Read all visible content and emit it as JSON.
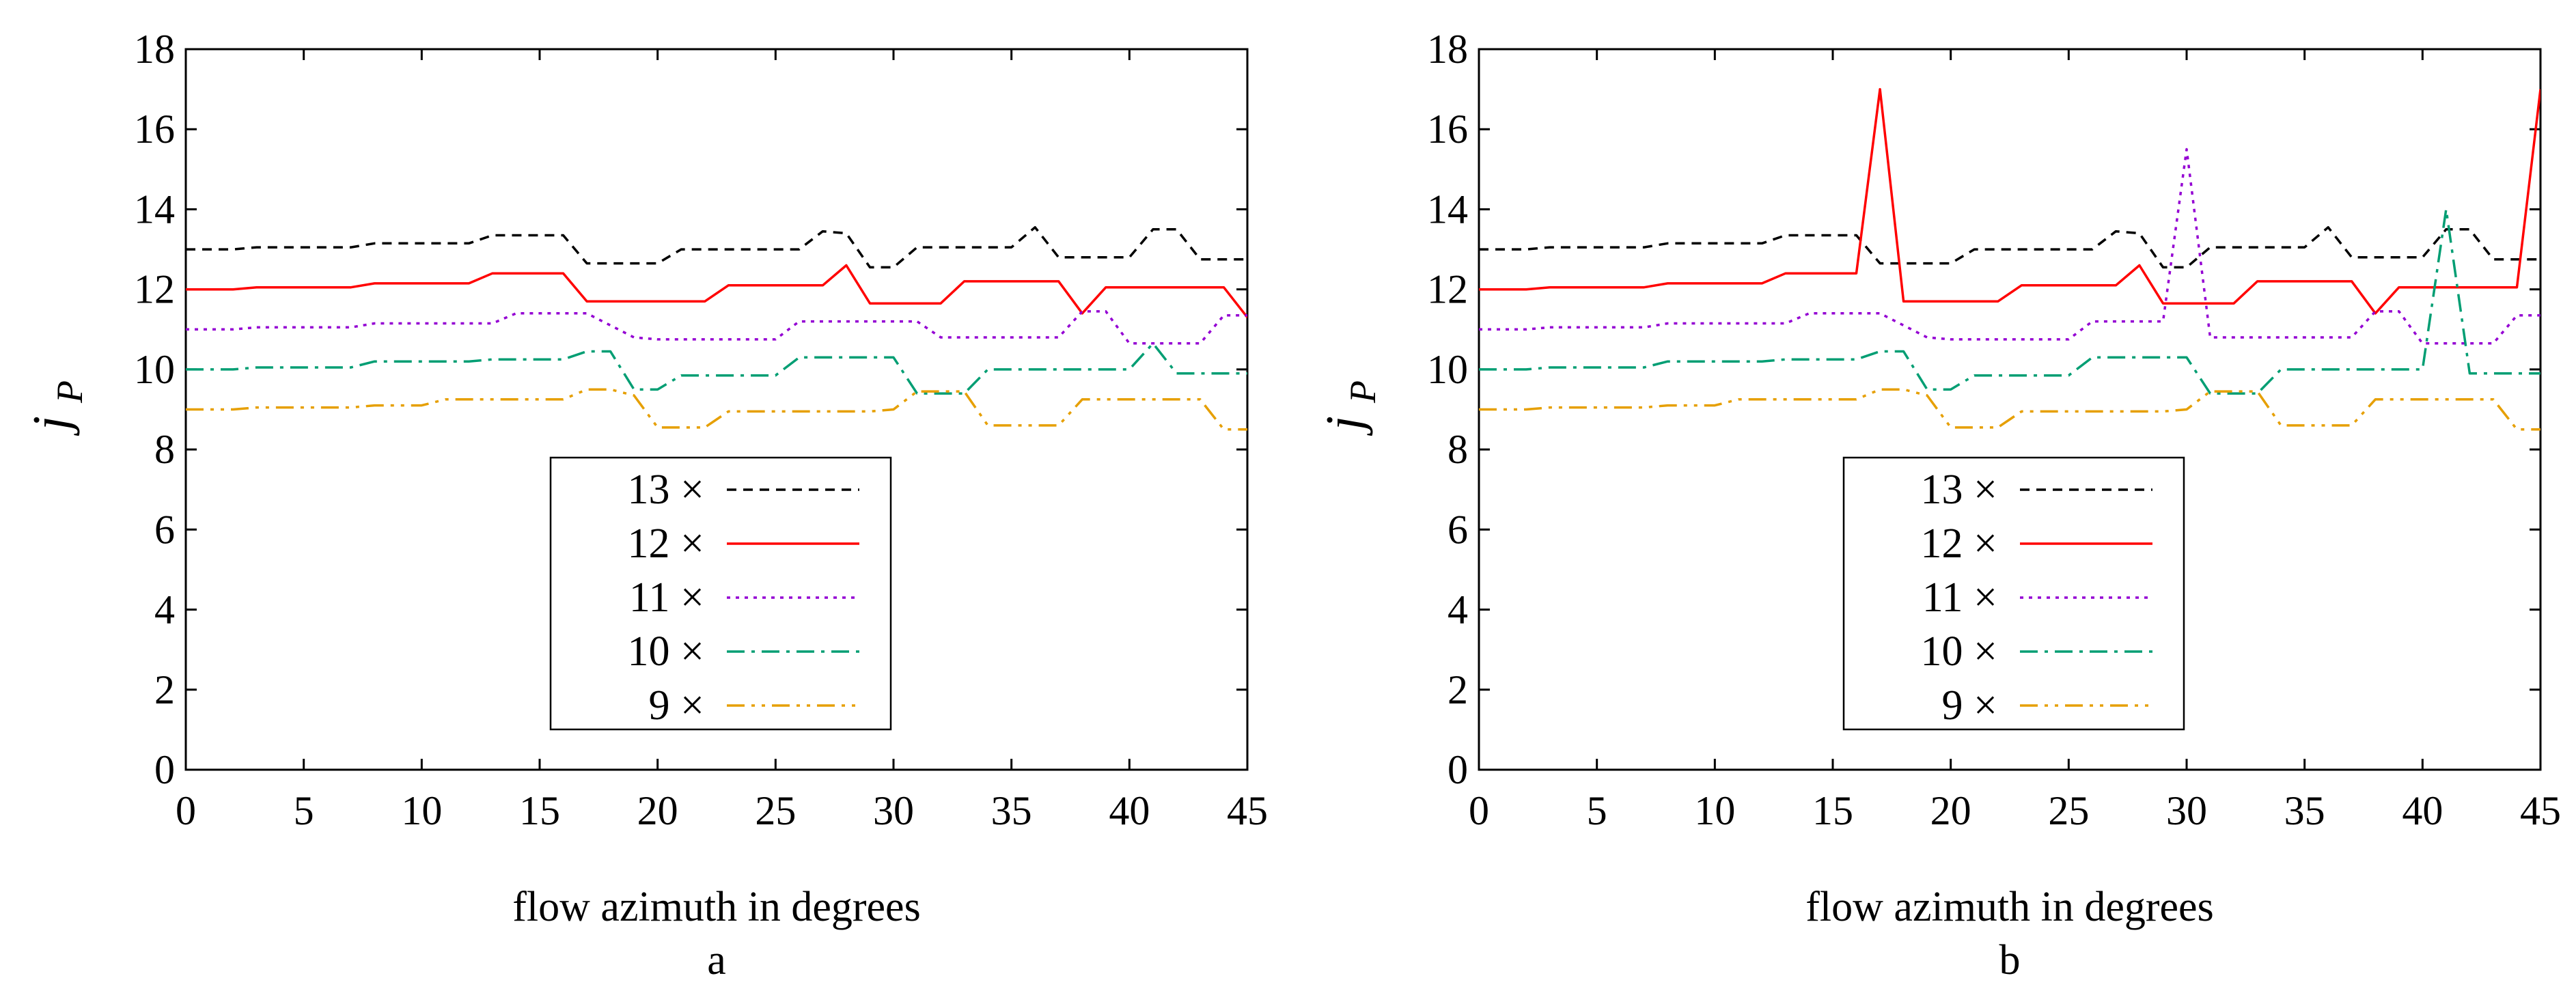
{
  "colors": {
    "s13": "#000000",
    "s12": "#ff0000",
    "s11": "#9400d3",
    "s10": "#009e73",
    "s9": "#e69f00"
  },
  "chart_data": [
    {
      "type": "line",
      "panel_label": "a",
      "xlabel": "flow azimuth in degrees",
      "ylabel_main": "j",
      "ylabel_sub": "P",
      "xlim": [
        0,
        45
      ],
      "ylim": [
        0,
        18
      ],
      "x_ticks": [
        0,
        5,
        10,
        15,
        20,
        25,
        30,
        35,
        40,
        45
      ],
      "y_ticks": [
        0,
        2,
        4,
        6,
        8,
        10,
        12,
        14,
        16,
        18
      ],
      "legend_position": "bottom-center",
      "series": [
        {
          "name": "13 ×",
          "dash": "dashed",
          "color": "#000000",
          "x": [
            0,
            2,
            3,
            7,
            8,
            12,
            13,
            16,
            17,
            20,
            21,
            26,
            27,
            28,
            29,
            30,
            31,
            35,
            36,
            37,
            40,
            41,
            42,
            43,
            44,
            45
          ],
          "y": [
            13.0,
            13.0,
            13.05,
            13.05,
            13.15,
            13.15,
            13.35,
            13.35,
            12.65,
            12.65,
            13.0,
            13.0,
            13.45,
            13.4,
            12.55,
            12.55,
            13.05,
            13.05,
            13.55,
            12.8,
            12.8,
            13.5,
            13.5,
            12.75,
            12.75,
            12.75
          ]
        },
        {
          "name": "12 ×",
          "dash": "solid",
          "color": "#ff0000",
          "x": [
            0,
            2,
            3,
            7,
            8,
            12,
            13,
            16,
            17,
            22,
            23,
            27,
            28,
            29,
            32,
            33,
            37,
            38,
            39,
            44,
            45
          ],
          "y": [
            12.0,
            12.0,
            12.05,
            12.05,
            12.15,
            12.15,
            12.4,
            12.4,
            11.7,
            11.7,
            12.1,
            12.1,
            12.6,
            11.65,
            11.65,
            12.2,
            12.2,
            11.4,
            12.05,
            12.05,
            11.3
          ]
        },
        {
          "name": "11 ×",
          "dash": "dotted",
          "color": "#9400d3",
          "x": [
            0,
            2,
            3,
            7,
            8,
            13,
            14,
            17,
            19,
            20,
            25,
            26,
            31,
            32,
            37,
            38,
            39,
            40,
            43,
            44,
            45
          ],
          "y": [
            11.0,
            11.0,
            11.05,
            11.05,
            11.15,
            11.15,
            11.4,
            11.4,
            10.8,
            10.75,
            10.75,
            11.2,
            11.2,
            10.8,
            10.8,
            11.45,
            11.45,
            10.65,
            10.65,
            11.35,
            11.35
          ]
        },
        {
          "name": "10 ×",
          "dash": "dashdot",
          "color": "#009e73",
          "x": [
            0,
            2,
            3,
            7,
            8,
            12,
            13,
            16,
            17,
            18,
            19,
            20,
            21,
            25,
            26,
            27,
            30,
            31,
            32,
            33,
            34,
            40,
            41,
            42,
            45
          ],
          "y": [
            10.0,
            10.0,
            10.05,
            10.05,
            10.2,
            10.2,
            10.25,
            10.25,
            10.45,
            10.45,
            9.5,
            9.5,
            9.85,
            9.85,
            10.3,
            10.3,
            10.3,
            9.4,
            9.4,
            9.4,
            10.0,
            10.0,
            10.65,
            9.9,
            9.9
          ]
        },
        {
          "name": "9 ×",
          "dash": "dashdotdot",
          "color": "#e69f00",
          "x": [
            0,
            2,
            3,
            7,
            8,
            10,
            11,
            15,
            16,
            17,
            18,
            19,
            20,
            22,
            23,
            29,
            30,
            31,
            33,
            34,
            36,
            37,
            38,
            43,
            44,
            45
          ],
          "y": [
            9.0,
            9.0,
            9.05,
            9.05,
            9.1,
            9.1,
            9.25,
            9.25,
            9.25,
            9.5,
            9.5,
            9.35,
            8.55,
            8.55,
            8.95,
            8.95,
            9.0,
            9.45,
            9.45,
            8.6,
            8.6,
            8.6,
            9.25,
            9.25,
            8.5,
            8.5
          ]
        }
      ]
    },
    {
      "type": "line",
      "panel_label": "b",
      "xlabel": "flow azimuth in degrees",
      "ylabel_main": "j",
      "ylabel_sub": "P",
      "xlim": [
        0,
        45
      ],
      "ylim": [
        0,
        18
      ],
      "x_ticks": [
        0,
        5,
        10,
        15,
        20,
        25,
        30,
        35,
        40,
        45
      ],
      "y_ticks": [
        0,
        2,
        4,
        6,
        8,
        10,
        12,
        14,
        16,
        18
      ],
      "legend_position": "bottom-center",
      "series": [
        {
          "name": "13 ×",
          "dash": "dashed",
          "color": "#000000",
          "x": [
            0,
            2,
            3,
            7,
            8,
            12,
            13,
            16,
            17,
            20,
            21,
            26,
            27,
            28,
            29,
            30,
            31,
            35,
            36,
            37,
            40,
            41,
            42,
            43,
            44,
            45
          ],
          "y": [
            13.0,
            13.0,
            13.05,
            13.05,
            13.15,
            13.15,
            13.35,
            13.35,
            12.65,
            12.65,
            13.0,
            13.0,
            13.45,
            13.4,
            12.55,
            12.55,
            13.05,
            13.05,
            13.55,
            12.8,
            12.8,
            13.5,
            13.5,
            12.75,
            12.75,
            12.75
          ]
        },
        {
          "name": "12 ×",
          "dash": "solid",
          "color": "#ff0000",
          "x": [
            0,
            2,
            3,
            7,
            8,
            12,
            13,
            16,
            17,
            18,
            22,
            23,
            27,
            28,
            29,
            32,
            33,
            37,
            38,
            39,
            44,
            45
          ],
          "y": [
            12.0,
            12.0,
            12.05,
            12.05,
            12.15,
            12.15,
            12.4,
            12.4,
            17.0,
            11.7,
            11.7,
            12.1,
            12.1,
            12.6,
            11.65,
            11.65,
            12.2,
            12.2,
            11.4,
            12.05,
            12.05,
            17.0
          ]
        },
        {
          "name": "11 ×",
          "dash": "dotted",
          "color": "#9400d3",
          "x": [
            0,
            2,
            3,
            7,
            8,
            13,
            14,
            17,
            19,
            20,
            25,
            26,
            29,
            30,
            31,
            32,
            37,
            38,
            39,
            40,
            43,
            44,
            45
          ],
          "y": [
            11.0,
            11.0,
            11.05,
            11.05,
            11.15,
            11.15,
            11.4,
            11.4,
            10.8,
            10.75,
            10.75,
            11.2,
            11.2,
            15.5,
            10.8,
            10.8,
            10.8,
            11.45,
            11.45,
            10.65,
            10.65,
            11.35,
            11.35
          ]
        },
        {
          "name": "10 ×",
          "dash": "dashdot",
          "color": "#009e73",
          "x": [
            0,
            2,
            3,
            7,
            8,
            12,
            13,
            16,
            17,
            18,
            19,
            20,
            21,
            25,
            26,
            27,
            30,
            31,
            32,
            33,
            34,
            40,
            41,
            42,
            45
          ],
          "y": [
            10.0,
            10.0,
            10.05,
            10.05,
            10.2,
            10.2,
            10.25,
            10.25,
            10.45,
            10.45,
            9.5,
            9.5,
            9.85,
            9.85,
            10.3,
            10.3,
            10.3,
            9.4,
            9.4,
            9.4,
            10.0,
            10.0,
            14.0,
            9.9,
            9.9
          ]
        },
        {
          "name": "9 ×",
          "dash": "dashdotdot",
          "color": "#e69f00",
          "x": [
            0,
            2,
            3,
            7,
            8,
            10,
            11,
            15,
            16,
            17,
            18,
            19,
            20,
            22,
            23,
            29,
            30,
            31,
            33,
            34,
            36,
            37,
            38,
            43,
            44,
            45
          ],
          "y": [
            9.0,
            9.0,
            9.05,
            9.05,
            9.1,
            9.1,
            9.25,
            9.25,
            9.25,
            9.5,
            9.5,
            9.35,
            8.55,
            8.55,
            8.95,
            8.95,
            9.0,
            9.45,
            9.45,
            8.6,
            8.6,
            8.6,
            9.25,
            9.25,
            8.5,
            8.5
          ]
        }
      ]
    }
  ]
}
